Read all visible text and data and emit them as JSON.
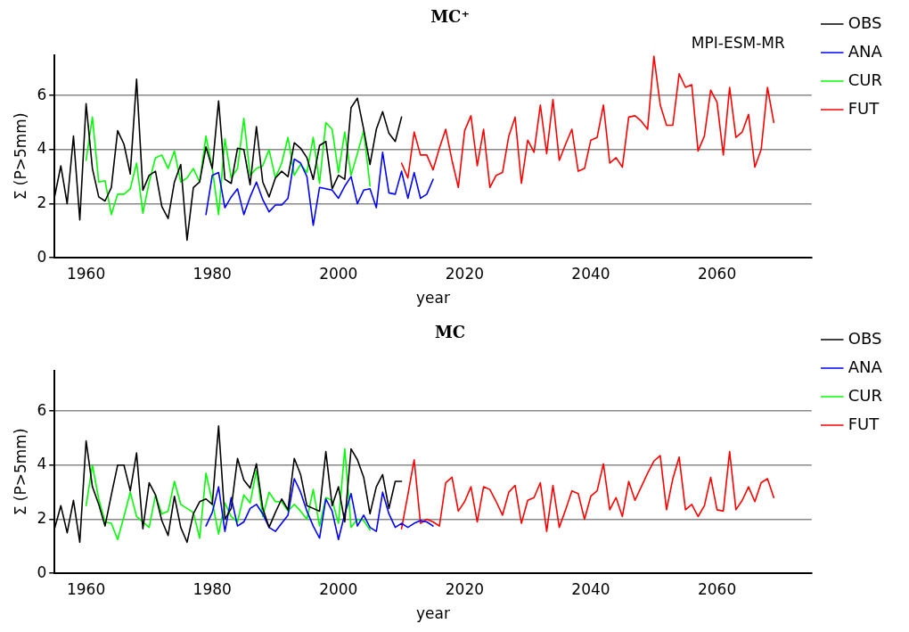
{
  "chart_data": [
    {
      "type": "line",
      "title": "MC⁺",
      "xlabel": "year",
      "ylabel": "Σ (P>5mm)",
      "annotations": [
        "MPI-ESM-MR"
      ],
      "xlim": [
        1955,
        2075
      ],
      "xticks": [
        1960,
        1980,
        2000,
        2020,
        2040,
        2060
      ],
      "ylim": [
        0,
        7.5
      ],
      "yticks": [
        0,
        2,
        4,
        6
      ],
      "grid": "y",
      "legend": "right",
      "marker": "none",
      "line_style": "solid",
      "series": [
        {
          "name": "OBS",
          "color": "#000000",
          "x": [
            1955,
            1956,
            1957,
            1958,
            1959,
            1960,
            1961,
            1962,
            1963,
            1964,
            1965,
            1966,
            1967,
            1968,
            1969,
            1970,
            1971,
            1972,
            1973,
            1974,
            1975,
            1976,
            1977,
            1978,
            1979,
            1980,
            1981,
            1982,
            1983,
            1984,
            1985,
            1986,
            1987,
            1988,
            1989,
            1990,
            1991,
            1992,
            1993,
            1994,
            1995,
            1996,
            1997,
            1998,
            1999,
            2000,
            2001,
            2002,
            2003,
            2004,
            2005,
            2006,
            2007,
            2008,
            2009,
            2010
          ],
          "values": [
            2.25,
            3.4,
            2.0,
            4.5,
            1.4,
            5.7,
            3.3,
            2.25,
            2.1,
            2.6,
            4.7,
            4.2,
            3.1,
            6.6,
            2.5,
            3.05,
            3.2,
            1.9,
            1.45,
            2.8,
            3.45,
            0.65,
            2.6,
            2.8,
            4.1,
            3.3,
            5.8,
            2.9,
            2.75,
            4.05,
            4.0,
            2.7,
            4.85,
            2.8,
            2.25,
            2.95,
            3.2,
            3.0,
            4.25,
            4.05,
            3.7,
            2.9,
            4.15,
            4.3,
            2.55,
            3.05,
            2.9,
            5.55,
            5.9,
            4.75,
            3.45,
            4.75,
            5.4,
            4.6,
            4.3,
            5.2
          ]
        },
        {
          "name": "ANA",
          "color": "#0000ff",
          "x": [
            1979,
            1980,
            1981,
            1982,
            1983,
            1984,
            1985,
            1986,
            1987,
            1988,
            1989,
            1990,
            1991,
            1992,
            1993,
            1994,
            1995,
            1996,
            1997,
            1998,
            1999,
            2000,
            2001,
            2002,
            2003,
            2004,
            2005,
            2006,
            2007,
            2008,
            2009,
            2010,
            2011,
            2012,
            2013,
            2014,
            2015
          ],
          "values": [
            1.6,
            3.05,
            3.15,
            1.85,
            2.25,
            2.55,
            1.6,
            2.25,
            2.8,
            2.15,
            1.7,
            1.95,
            1.95,
            2.2,
            3.65,
            3.5,
            3.0,
            1.2,
            2.6,
            2.55,
            2.5,
            2.2,
            2.65,
            3.0,
            2.0,
            2.5,
            2.55,
            1.85,
            3.9,
            2.4,
            2.35,
            3.2,
            2.2,
            3.15,
            2.2,
            2.35,
            2.9
          ]
        },
        {
          "name": "CUR",
          "color": "#00ff00",
          "x": [
            1960,
            1961,
            1962,
            1963,
            1964,
            1965,
            1966,
            1967,
            1968,
            1969,
            1970,
            1971,
            1972,
            1973,
            1974,
            1975,
            1976,
            1977,
            1978,
            1979,
            1980,
            1981,
            1982,
            1983,
            1984,
            1985,
            1986,
            1987,
            1988,
            1989,
            1990,
            1991,
            1992,
            1993,
            1994,
            1995,
            1996,
            1997,
            1998,
            1999,
            2000,
            2001,
            2002,
            2003,
            2004,
            2005
          ],
          "values": [
            3.6,
            5.2,
            2.8,
            2.85,
            1.6,
            2.35,
            2.35,
            2.55,
            3.5,
            1.65,
            2.8,
            3.7,
            3.8,
            3.3,
            3.95,
            2.8,
            2.95,
            3.3,
            2.8,
            4.5,
            3.3,
            1.6,
            4.4,
            2.95,
            3.3,
            5.15,
            3.05,
            3.3,
            3.4,
            4.0,
            2.95,
            3.5,
            4.45,
            3.05,
            3.45,
            3.15,
            4.45,
            2.75,
            5.0,
            4.75,
            3.15,
            4.65,
            3.05,
            3.85,
            4.7,
            2.65
          ]
        },
        {
          "name": "FUT",
          "color": "#ff0000",
          "x": [
            2010,
            2011,
            2012,
            2013,
            2014,
            2015,
            2016,
            2017,
            2018,
            2019,
            2020,
            2021,
            2022,
            2023,
            2024,
            2025,
            2026,
            2027,
            2028,
            2029,
            2030,
            2031,
            2032,
            2033,
            2034,
            2035,
            2036,
            2037,
            2038,
            2039,
            2040,
            2041,
            2042,
            2043,
            2044,
            2045,
            2046,
            2047,
            2048,
            2049,
            2050,
            2051,
            2052,
            2053,
            2054,
            2055,
            2056,
            2057,
            2058,
            2059,
            2060,
            2061,
            2062,
            2063,
            2064,
            2065,
            2066,
            2067,
            2068,
            2069
          ],
          "values": [
            3.5,
            2.95,
            4.65,
            3.8,
            3.8,
            3.25,
            4.05,
            4.75,
            3.6,
            2.6,
            4.7,
            5.25,
            3.4,
            4.75,
            2.6,
            3.05,
            3.15,
            4.5,
            5.2,
            2.75,
            4.35,
            3.9,
            5.65,
            3.85,
            5.85,
            3.6,
            4.2,
            4.75,
            3.2,
            3.3,
            4.35,
            4.45,
            5.65,
            3.5,
            3.7,
            3.35,
            5.2,
            5.25,
            5.05,
            4.75,
            7.45,
            5.65,
            4.9,
            4.9,
            6.8,
            6.3,
            6.4,
            3.95,
            4.5,
            6.2,
            5.75,
            3.8,
            6.3,
            4.45,
            4.65,
            5.3,
            3.35,
            4.0,
            6.3,
            5.0
          ]
        }
      ]
    },
    {
      "type": "line",
      "title": "MC",
      "xlabel": "year",
      "ylabel": "Σ (P>5mm)",
      "xlim": [
        1955,
        2075
      ],
      "xticks": [
        1960,
        1980,
        2000,
        2020,
        2040,
        2060
      ],
      "ylim": [
        0,
        7.5
      ],
      "yticks": [
        0,
        2,
        4,
        6
      ],
      "grid": "y",
      "legend": "right",
      "marker": "none",
      "line_style": "solid",
      "series": [
        {
          "name": "OBS",
          "color": "#000000",
          "x": [
            1955,
            1956,
            1957,
            1958,
            1959,
            1960,
            1961,
            1962,
            1963,
            1964,
            1965,
            1966,
            1967,
            1968,
            1969,
            1970,
            1971,
            1972,
            1973,
            1974,
            1975,
            1976,
            1977,
            1978,
            1979,
            1980,
            1981,
            1982,
            1983,
            1984,
            1985,
            1986,
            1987,
            1988,
            1989,
            1990,
            1991,
            1992,
            1993,
            1994,
            1995,
            1996,
            1997,
            1998,
            1999,
            2000,
            2001,
            2002,
            2003,
            2004,
            2005,
            2006,
            2007,
            2008,
            2009,
            2010
          ],
          "values": [
            1.65,
            2.5,
            1.5,
            2.7,
            1.15,
            4.9,
            3.2,
            2.55,
            1.75,
            2.9,
            4.0,
            4.0,
            3.05,
            4.45,
            1.65,
            3.35,
            2.9,
            1.95,
            1.4,
            2.85,
            1.7,
            1.15,
            2.2,
            2.65,
            2.75,
            2.55,
            5.45,
            2.0,
            2.4,
            4.25,
            3.45,
            3.15,
            4.05,
            2.4,
            1.7,
            2.25,
            2.75,
            2.35,
            4.25,
            3.65,
            2.5,
            2.4,
            2.3,
            4.5,
            2.5,
            3.2,
            1.9,
            4.6,
            4.2,
            3.55,
            2.2,
            3.2,
            3.65,
            2.4,
            3.4,
            3.4
          ]
        },
        {
          "name": "ANA",
          "color": "#0000ff",
          "x": [
            1979,
            1980,
            1981,
            1982,
            1983,
            1984,
            1985,
            1986,
            1987,
            1988,
            1989,
            1990,
            1991,
            1992,
            1993,
            1994,
            1995,
            1996,
            1997,
            1998,
            1999,
            2000,
            2001,
            2002,
            2003,
            2004,
            2005,
            2006,
            2007,
            2008,
            2009,
            2010,
            2011,
            2012,
            2013,
            2014,
            2015
          ],
          "values": [
            1.75,
            2.25,
            3.2,
            1.55,
            2.8,
            1.75,
            1.9,
            2.4,
            2.55,
            2.2,
            1.7,
            1.55,
            1.85,
            2.15,
            3.5,
            3.0,
            2.3,
            1.75,
            1.3,
            2.75,
            2.3,
            1.25,
            2.2,
            2.95,
            1.75,
            2.15,
            1.7,
            1.55,
            3.0,
            2.2,
            1.7,
            1.85,
            1.7,
            1.85,
            1.95,
            1.9,
            1.75
          ]
        },
        {
          "name": "CUR",
          "color": "#00ff00",
          "x": [
            1960,
            1961,
            1962,
            1963,
            1964,
            1965,
            1966,
            1967,
            1968,
            1969,
            1970,
            1971,
            1972,
            1973,
            1974,
            1975,
            1976,
            1977,
            1978,
            1979,
            1980,
            1981,
            1982,
            1983,
            1984,
            1985,
            1986,
            1987,
            1988,
            1989,
            1990,
            1991,
            1992,
            1993,
            1994,
            1995,
            1996,
            1997,
            1998,
            1999,
            2000,
            2001,
            2002,
            2003,
            2004,
            2005
          ],
          "values": [
            2.5,
            4.0,
            2.75,
            1.9,
            1.85,
            1.25,
            2.1,
            3.0,
            2.1,
            1.9,
            1.7,
            2.9,
            2.2,
            2.3,
            3.4,
            2.55,
            2.4,
            2.25,
            1.3,
            3.7,
            2.65,
            1.45,
            2.6,
            2.1,
            1.9,
            2.9,
            2.6,
            3.8,
            2.1,
            3.0,
            2.65,
            2.65,
            2.3,
            2.55,
            2.3,
            2.0,
            3.1,
            1.75,
            2.8,
            2.7,
            1.85,
            4.6,
            1.7,
            2.0,
            1.95,
            1.6
          ]
        },
        {
          "name": "FUT",
          "color": "#ff0000",
          "x": [
            2010,
            2011,
            2012,
            2013,
            2014,
            2015,
            2016,
            2017,
            2018,
            2019,
            2020,
            2021,
            2022,
            2023,
            2024,
            2025,
            2026,
            2027,
            2028,
            2029,
            2030,
            2031,
            2032,
            2033,
            2034,
            2035,
            2036,
            2037,
            2038,
            2039,
            2040,
            2041,
            2042,
            2043,
            2044,
            2045,
            2046,
            2047,
            2048,
            2049,
            2050,
            2051,
            2052,
            2053,
            2054,
            2055,
            2056,
            2057,
            2058,
            2059,
            2060,
            2061,
            2062,
            2063,
            2064,
            2065,
            2066,
            2067,
            2068,
            2069
          ],
          "values": [
            1.65,
            2.9,
            4.2,
            1.85,
            2.0,
            1.9,
            1.75,
            3.35,
            3.55,
            2.3,
            2.65,
            3.2,
            1.9,
            3.2,
            3.1,
            2.65,
            2.15,
            3.0,
            3.25,
            1.85,
            2.7,
            2.8,
            3.35,
            1.55,
            3.25,
            1.7,
            2.35,
            3.05,
            2.95,
            2.0,
            2.85,
            3.05,
            4.05,
            2.35,
            2.8,
            2.1,
            3.4,
            2.7,
            3.2,
            3.7,
            4.15,
            4.35,
            2.35,
            3.5,
            4.3,
            2.35,
            2.55,
            2.1,
            2.5,
            3.55,
            2.35,
            2.3,
            4.5,
            2.35,
            2.7,
            3.2,
            2.65,
            3.35,
            3.5,
            2.8
          ]
        }
      ]
    }
  ]
}
